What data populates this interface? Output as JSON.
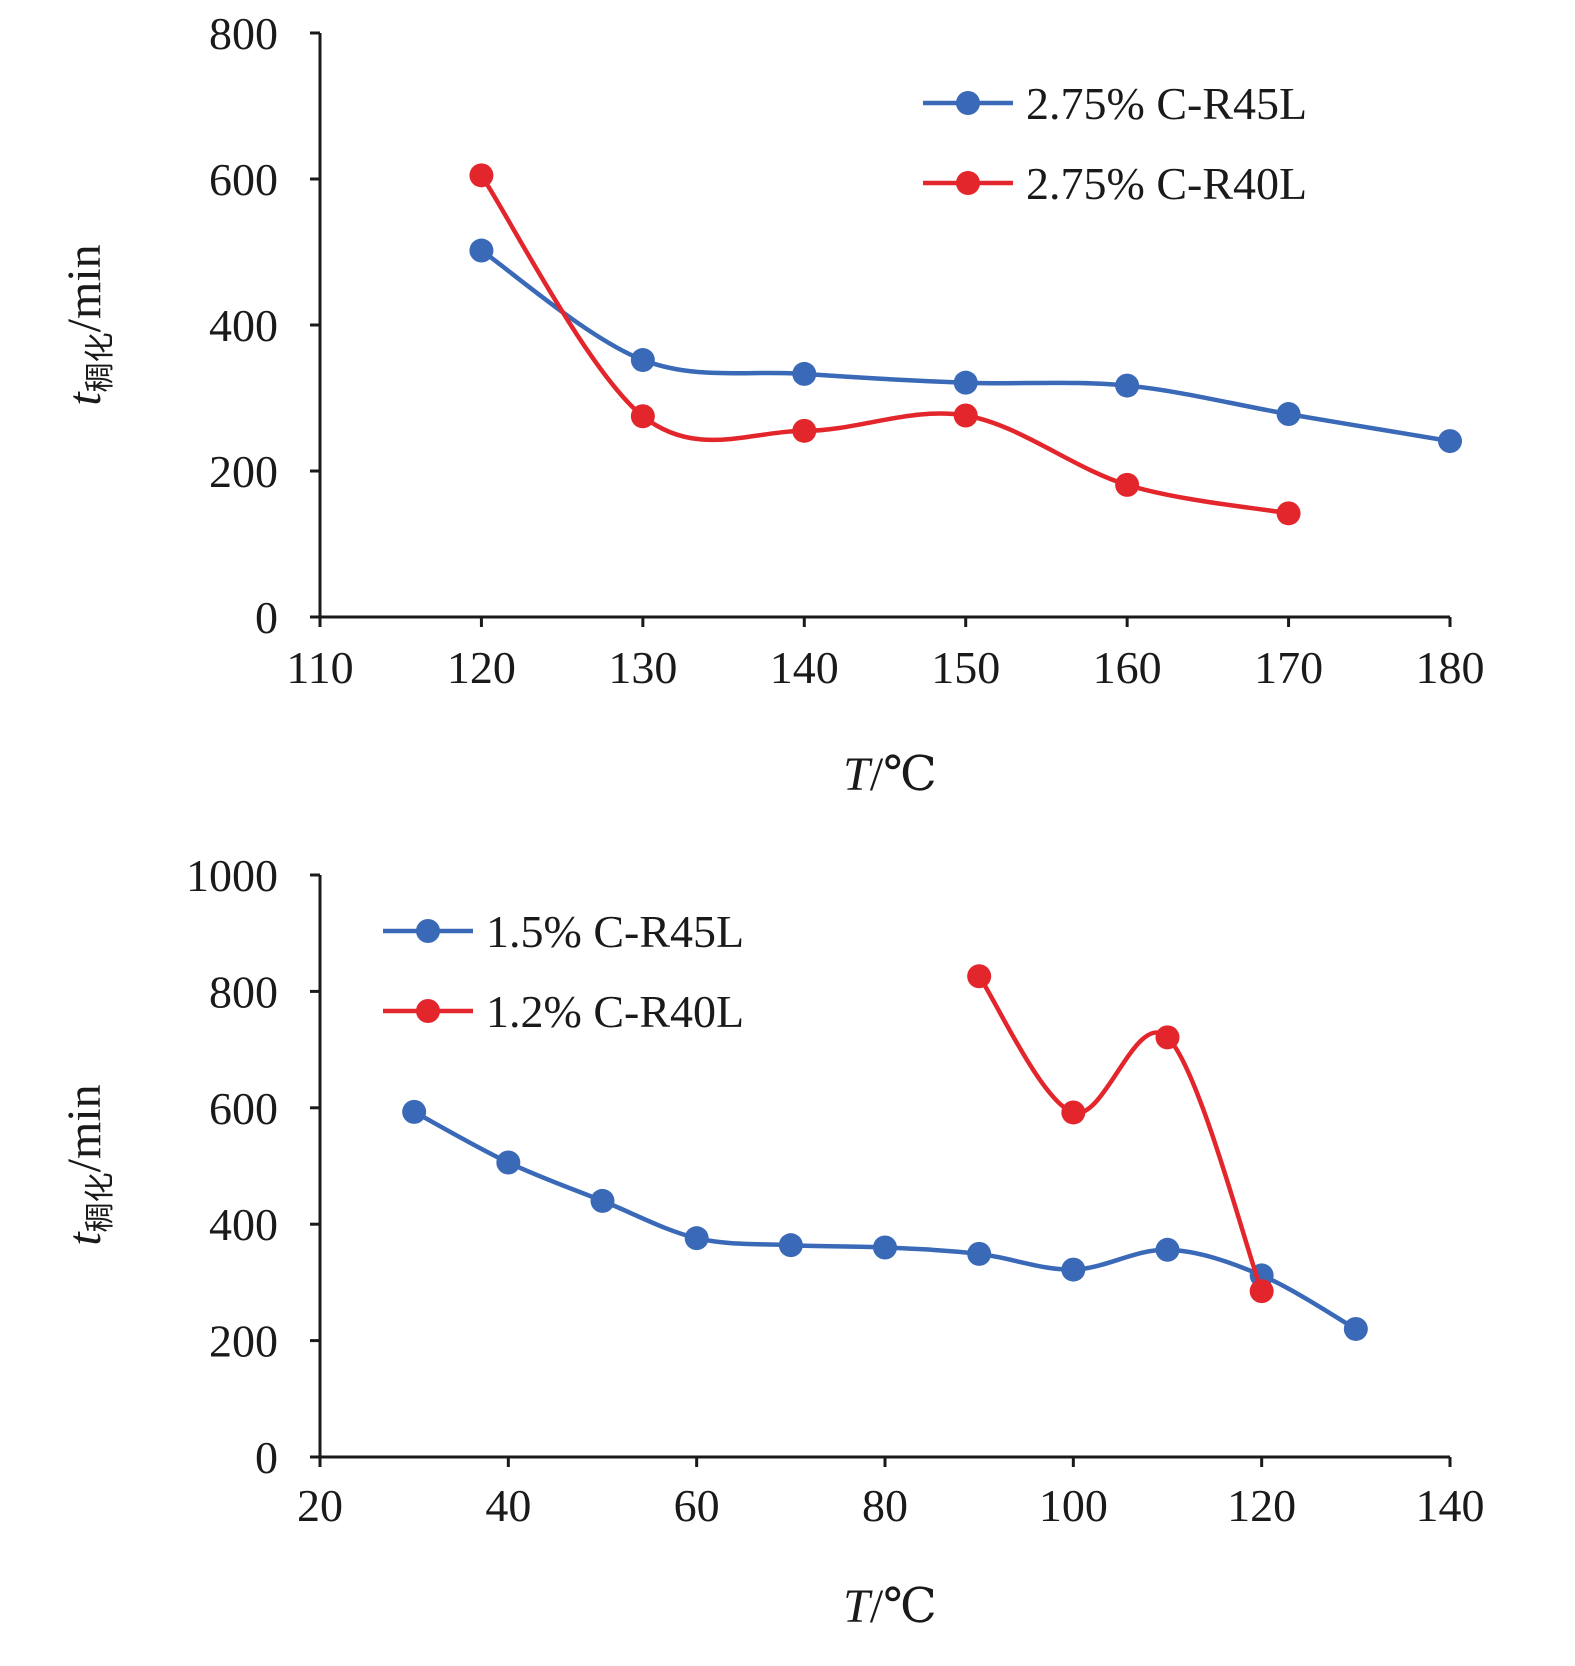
{
  "chart_data": [
    {
      "type": "line",
      "smooth": true,
      "xlabel": "T/℃",
      "ylabel": "t稠化/min",
      "x_ticks": [
        "110",
        "120",
        "130",
        "140",
        "150",
        "160",
        "170",
        "180"
      ],
      "y_ticks": [
        "0",
        "200",
        "400",
        "600",
        "800"
      ],
      "xlim": [
        110,
        180
      ],
      "ylim": [
        0,
        800
      ],
      "grid": false,
      "legend_position": "top-right",
      "series": [
        {
          "name": "2.75% C-R45L",
          "color": "#3a69b8",
          "x": [
            120,
            130,
            140,
            150,
            160,
            170,
            180
          ],
          "y": [
            502,
            352,
            333,
            321,
            317,
            278,
            241
          ]
        },
        {
          "name": "2.75% C-R40L",
          "color": "#e3262c",
          "x": [
            120,
            130,
            140,
            150,
            160,
            170
          ],
          "y": [
            605,
            275,
            255,
            276,
            181,
            142
          ]
        }
      ]
    },
    {
      "type": "line",
      "smooth": true,
      "xlabel": "T/℃",
      "ylabel": "t稠化/min",
      "x_ticks": [
        "20",
        "40",
        "60",
        "80",
        "100",
        "120",
        "140"
      ],
      "y_ticks": [
        "0",
        "200",
        "400",
        "600",
        "800",
        "1000"
      ],
      "xlim": [
        20,
        140
      ],
      "ylim": [
        0,
        1000
      ],
      "grid": false,
      "legend_position": "top-left",
      "series": [
        {
          "name": "1.5% C-R45L",
          "color": "#3a69b8",
          "x": [
            30,
            40,
            50,
            60,
            70,
            80,
            90,
            100,
            110,
            120,
            130
          ],
          "y": [
            593,
            506,
            440,
            376,
            364,
            360,
            349,
            322,
            356,
            312,
            220
          ]
        },
        {
          "name": "1.2% C-R40L",
          "color": "#e3262c",
          "x": [
            90,
            100,
            110,
            120
          ],
          "y": [
            826,
            592,
            721,
            285
          ]
        }
      ]
    }
  ]
}
